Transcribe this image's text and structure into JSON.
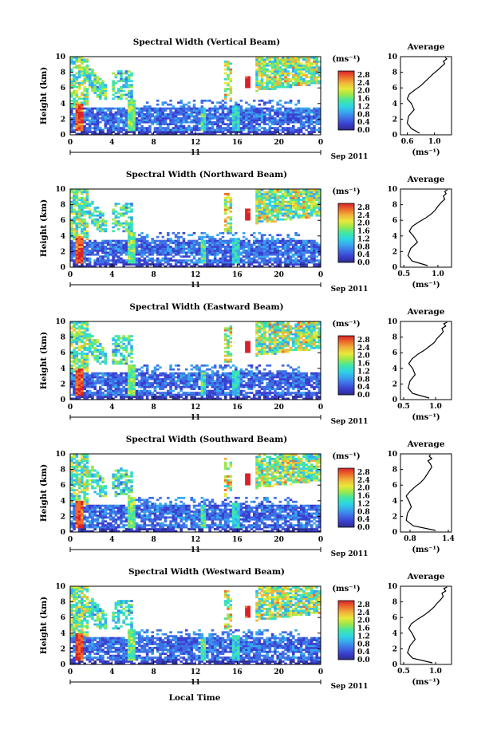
{
  "figure": {
    "xlabel": "Local Time",
    "date_label": "Sep 2011",
    "day_label": "11",
    "average_title": "Average",
    "colorbar_unit": "(ms⁻¹)",
    "colorscale": [
      "#2b2c8c",
      "#3a3fcf",
      "#3f6fe6",
      "#37a7ee",
      "#2ed6e0",
      "#42e6a4",
      "#9be84a",
      "#e8e83a",
      "#f0b43a",
      "#ee6a2a",
      "#d8232a"
    ]
  },
  "chart_data": [
    {
      "type": "heatmap",
      "title": "Spectral Width (Vertical Beam)",
      "ylabel": "Height (km)",
      "x_ticks": [
        "0",
        "4",
        "8",
        "12",
        "16",
        "20",
        "0"
      ],
      "y_ticks": [
        "0",
        "2",
        "4",
        "6",
        "8",
        "10"
      ],
      "xlim": [
        0,
        24
      ],
      "ylim": [
        0,
        10
      ],
      "colorbar": {
        "ticks": [
          "0.0",
          "0.4",
          "0.8",
          "1.2",
          "1.6",
          "2.0",
          "2.4",
          "2.8"
        ],
        "range": [
          0,
          3.0
        ]
      },
      "average": {
        "type": "line",
        "title": "Average",
        "xlabel": "(ms⁻¹)",
        "x_ticks": [
          "0.6",
          "1.0"
        ],
        "xlim": [
          0.5,
          1.25
        ],
        "ylim": [
          0,
          10
        ],
        "y_ticks": [
          "0",
          "2",
          "4",
          "6",
          "8",
          "10"
        ],
        "x": [
          0.78,
          0.66,
          0.6,
          0.62,
          0.7,
          0.66,
          0.6,
          0.63,
          0.72,
          0.8,
          0.86,
          0.92,
          0.98,
          1.05,
          1.1,
          1.15,
          1.13,
          1.18,
          1.16
        ],
        "y": [
          0.2,
          0.8,
          1.5,
          2.4,
          3.2,
          4.0,
          4.6,
          5.2,
          5.8,
          6.3,
          6.8,
          7.3,
          7.8,
          8.3,
          8.7,
          9.1,
          9.4,
          9.7,
          9.9
        ]
      }
    },
    {
      "type": "heatmap",
      "title": "Spectral Width (Northward Beam)",
      "ylabel": "Height (km)",
      "x_ticks": [
        "0",
        "4",
        "8",
        "12",
        "16",
        "20",
        "0"
      ],
      "y_ticks": [
        "0",
        "2",
        "4",
        "6",
        "8",
        "10"
      ],
      "xlim": [
        0,
        24
      ],
      "ylim": [
        0,
        10
      ],
      "colorbar": {
        "ticks": [
          "0.0",
          "0.4",
          "0.8",
          "1.2",
          "1.6",
          "2.0",
          "2.4",
          "2.8"
        ],
        "range": [
          0,
          3.0
        ]
      },
      "average": {
        "type": "line",
        "title": "Average",
        "xlabel": "(ms⁻¹)",
        "x_ticks": [
          "0.5",
          "1.0"
        ],
        "xlim": [
          0.45,
          1.2
        ],
        "ylim": [
          0,
          10
        ],
        "y_ticks": [
          "0",
          "2",
          "4",
          "6",
          "8",
          "10"
        ],
        "x": [
          0.85,
          0.62,
          0.56,
          0.6,
          0.7,
          0.64,
          0.58,
          0.62,
          0.72,
          0.82,
          0.9,
          0.96,
          1.0,
          1.05,
          1.1,
          1.08,
          1.12,
          1.1,
          1.14
        ],
        "y": [
          0.2,
          0.8,
          1.5,
          2.4,
          3.2,
          4.0,
          4.6,
          5.2,
          5.8,
          6.3,
          6.8,
          7.3,
          7.8,
          8.3,
          8.7,
          9.1,
          9.4,
          9.7,
          9.9
        ]
      }
    },
    {
      "type": "heatmap",
      "title": "Spectral Width (Eastward Beam)",
      "ylabel": "Height (km)",
      "x_ticks": [
        "0",
        "4",
        "8",
        "12",
        "16",
        "20",
        "0"
      ],
      "y_ticks": [
        "0",
        "2",
        "4",
        "6",
        "8",
        "10"
      ],
      "xlim": [
        0,
        24
      ],
      "ylim": [
        0,
        10
      ],
      "colorbar": {
        "ticks": [
          "0.0",
          "0.4",
          "0.8",
          "1.2",
          "1.6",
          "2.0",
          "2.4",
          "2.8"
        ],
        "range": [
          0,
          3.0
        ]
      },
      "average": {
        "type": "line",
        "title": "Average",
        "xlabel": "(ms⁻¹)",
        "x_ticks": [
          "0.5",
          "1.0"
        ],
        "xlim": [
          0.45,
          1.25
        ],
        "ylim": [
          0,
          10
        ],
        "y_ticks": [
          "0",
          "2",
          "4",
          "6",
          "8",
          "10"
        ],
        "x": [
          0.9,
          0.64,
          0.57,
          0.6,
          0.68,
          0.64,
          0.58,
          0.63,
          0.72,
          0.82,
          0.9,
          0.98,
          1.02,
          1.08,
          1.12,
          1.1,
          1.16,
          1.13,
          1.18
        ],
        "y": [
          0.2,
          0.8,
          1.5,
          2.4,
          3.2,
          4.0,
          4.6,
          5.2,
          5.8,
          6.3,
          6.8,
          7.3,
          7.8,
          8.3,
          8.7,
          9.1,
          9.4,
          9.7,
          9.9
        ]
      }
    },
    {
      "type": "heatmap",
      "title": "Spectral Width (Southward Beam)",
      "ylabel": "Height (km)",
      "x_ticks": [
        "0",
        "4",
        "8",
        "12",
        "16",
        "20",
        "0"
      ],
      "y_ticks": [
        "0",
        "2",
        "4",
        "6",
        "8",
        "10"
      ],
      "xlim": [
        0,
        24
      ],
      "ylim": [
        0,
        10
      ],
      "colorbar": {
        "ticks": [
          "0.0",
          "0.4",
          "0.8",
          "1.2",
          "1.6",
          "2.0",
          "2.4",
          "2.8"
        ],
        "range": [
          0,
          3.0
        ]
      },
      "average": {
        "type": "line",
        "title": "Average",
        "xlabel": "(ms⁻¹)",
        "x_ticks": [
          "0.8",
          "1.4"
        ],
        "xlim": [
          0.65,
          1.45
        ],
        "ylim": [
          0,
          10
        ],
        "y_ticks": [
          "0",
          "2",
          "4",
          "6",
          "8",
          "10"
        ],
        "x": [
          1.2,
          0.85,
          0.74,
          0.76,
          0.82,
          0.78,
          0.74,
          0.8,
          0.88,
          0.96,
          1.02,
          1.06,
          1.1,
          1.14,
          1.12,
          1.08,
          1.14,
          1.1,
          1.12
        ],
        "y": [
          0.2,
          0.8,
          1.5,
          2.4,
          3.2,
          4.0,
          4.6,
          5.2,
          5.8,
          6.3,
          6.8,
          7.3,
          7.8,
          8.3,
          8.7,
          9.1,
          9.4,
          9.7,
          9.9
        ]
      }
    },
    {
      "type": "heatmap",
      "title": "Spectral Width (Westward Beam)",
      "ylabel": "Height (km)",
      "x_ticks": [
        "0",
        "4",
        "8",
        "12",
        "16",
        "20",
        "0"
      ],
      "y_ticks": [
        "0",
        "2",
        "4",
        "6",
        "8",
        "10"
      ],
      "xlim": [
        0,
        24
      ],
      "ylim": [
        0,
        10
      ],
      "colorbar": {
        "ticks": [
          "0.0",
          "0.4",
          "0.8",
          "1.2",
          "1.6",
          "2.0",
          "2.4",
          "2.8"
        ],
        "range": [
          0,
          3.0
        ]
      },
      "average": {
        "type": "line",
        "title": "Average",
        "xlabel": "(ms⁻¹)",
        "x_ticks": [
          "0.5",
          "1.0"
        ],
        "xlim": [
          0.45,
          1.25
        ],
        "ylim": [
          0,
          10
        ],
        "y_ticks": [
          "0",
          "2",
          "4",
          "6",
          "8",
          "10"
        ],
        "x": [
          0.95,
          0.64,
          0.56,
          0.6,
          0.68,
          0.63,
          0.58,
          0.62,
          0.72,
          0.82,
          0.9,
          0.97,
          1.02,
          1.08,
          1.12,
          1.1,
          1.16,
          1.13,
          1.18
        ],
        "y": [
          0.2,
          0.8,
          1.5,
          2.4,
          3.2,
          4.0,
          4.6,
          5.2,
          5.8,
          6.3,
          6.8,
          7.3,
          7.8,
          8.3,
          8.7,
          9.1,
          9.4,
          9.7,
          9.9
        ]
      }
    }
  ]
}
